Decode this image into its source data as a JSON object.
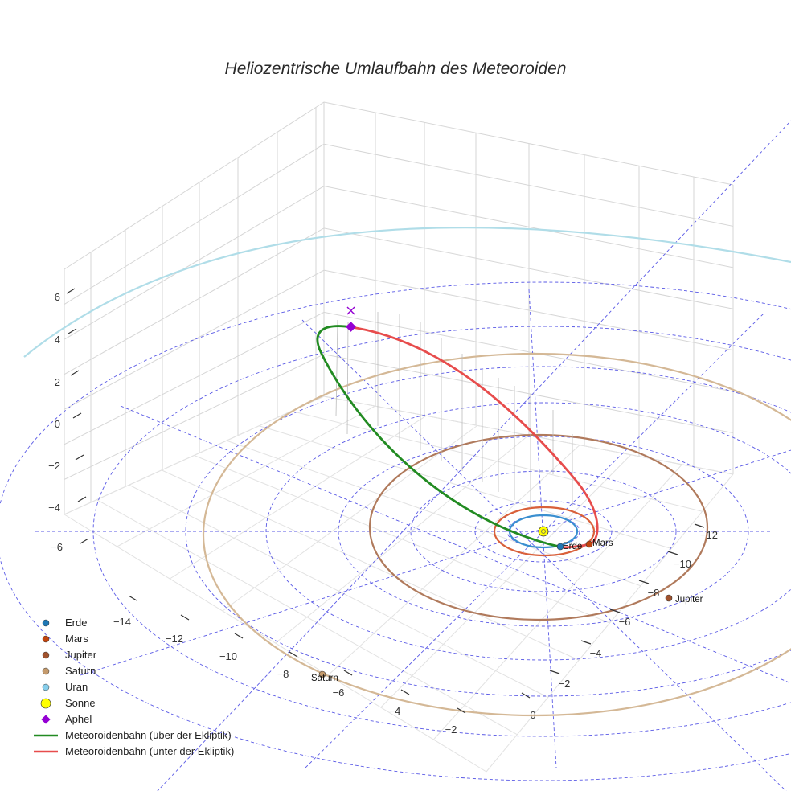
{
  "chart_data": {
    "type": "scatter",
    "title": "Heliozentrische Umlaufbahn des Meteoroiden",
    "z_ticks": [
      "6",
      "4",
      "2",
      "0",
      "−2",
      "−4",
      "−6"
    ],
    "x_ticks": [
      "−14",
      "−12",
      "−10",
      "−8",
      "−6",
      "−4",
      "−2",
      "0"
    ],
    "y_ticks": [
      "−2",
      "−4",
      "−6",
      "−8",
      "−10",
      "−12"
    ],
    "planets": [
      {
        "name": "Erde",
        "color": "#1f77b4",
        "orbit_color": "#3a8fd0"
      },
      {
        "name": "Mars",
        "color": "#c1440e",
        "orbit_color": "#d9603a"
      },
      {
        "name": "Jupiter",
        "color": "#a0522d",
        "orbit_color": "#b07a5c"
      },
      {
        "name": "Saturn",
        "color": "#c49a6c",
        "orbit_color": "#d4b896"
      },
      {
        "name": "Uran",
        "color": "#87ceeb",
        "orbit_color": "#b0dde8"
      }
    ],
    "sun": {
      "name": "Sonne",
      "color": "#ffff00"
    },
    "aphel": {
      "name": "Aphel",
      "color": "#9400d3"
    },
    "orbit_segments": [
      {
        "name": "Meteoroidenbahn (über der Ekliptik)",
        "color": "#228b22"
      },
      {
        "name": "Meteoroidenbahn (unter der Ekliptik)",
        "color": "#e74c4c"
      }
    ],
    "legend_position": "bottom-left",
    "grid": true
  },
  "legend": {
    "items": [
      "Erde",
      "Mars",
      "Jupiter",
      "Saturn",
      "Uran",
      "Sonne",
      "Aphel",
      "Meteoroidenbahn (über der Ekliptik)",
      "Meteoroidenbahn (unter der Ekliptik)"
    ]
  }
}
